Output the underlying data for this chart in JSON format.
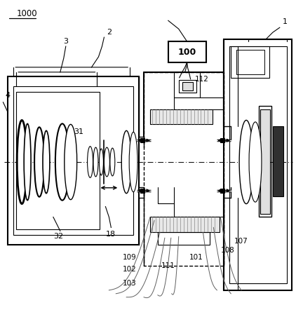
{
  "background_color": "#ffffff",
  "line_color": "#000000",
  "fig_width": 4.22,
  "fig_height": 4.62,
  "dpi": 100
}
